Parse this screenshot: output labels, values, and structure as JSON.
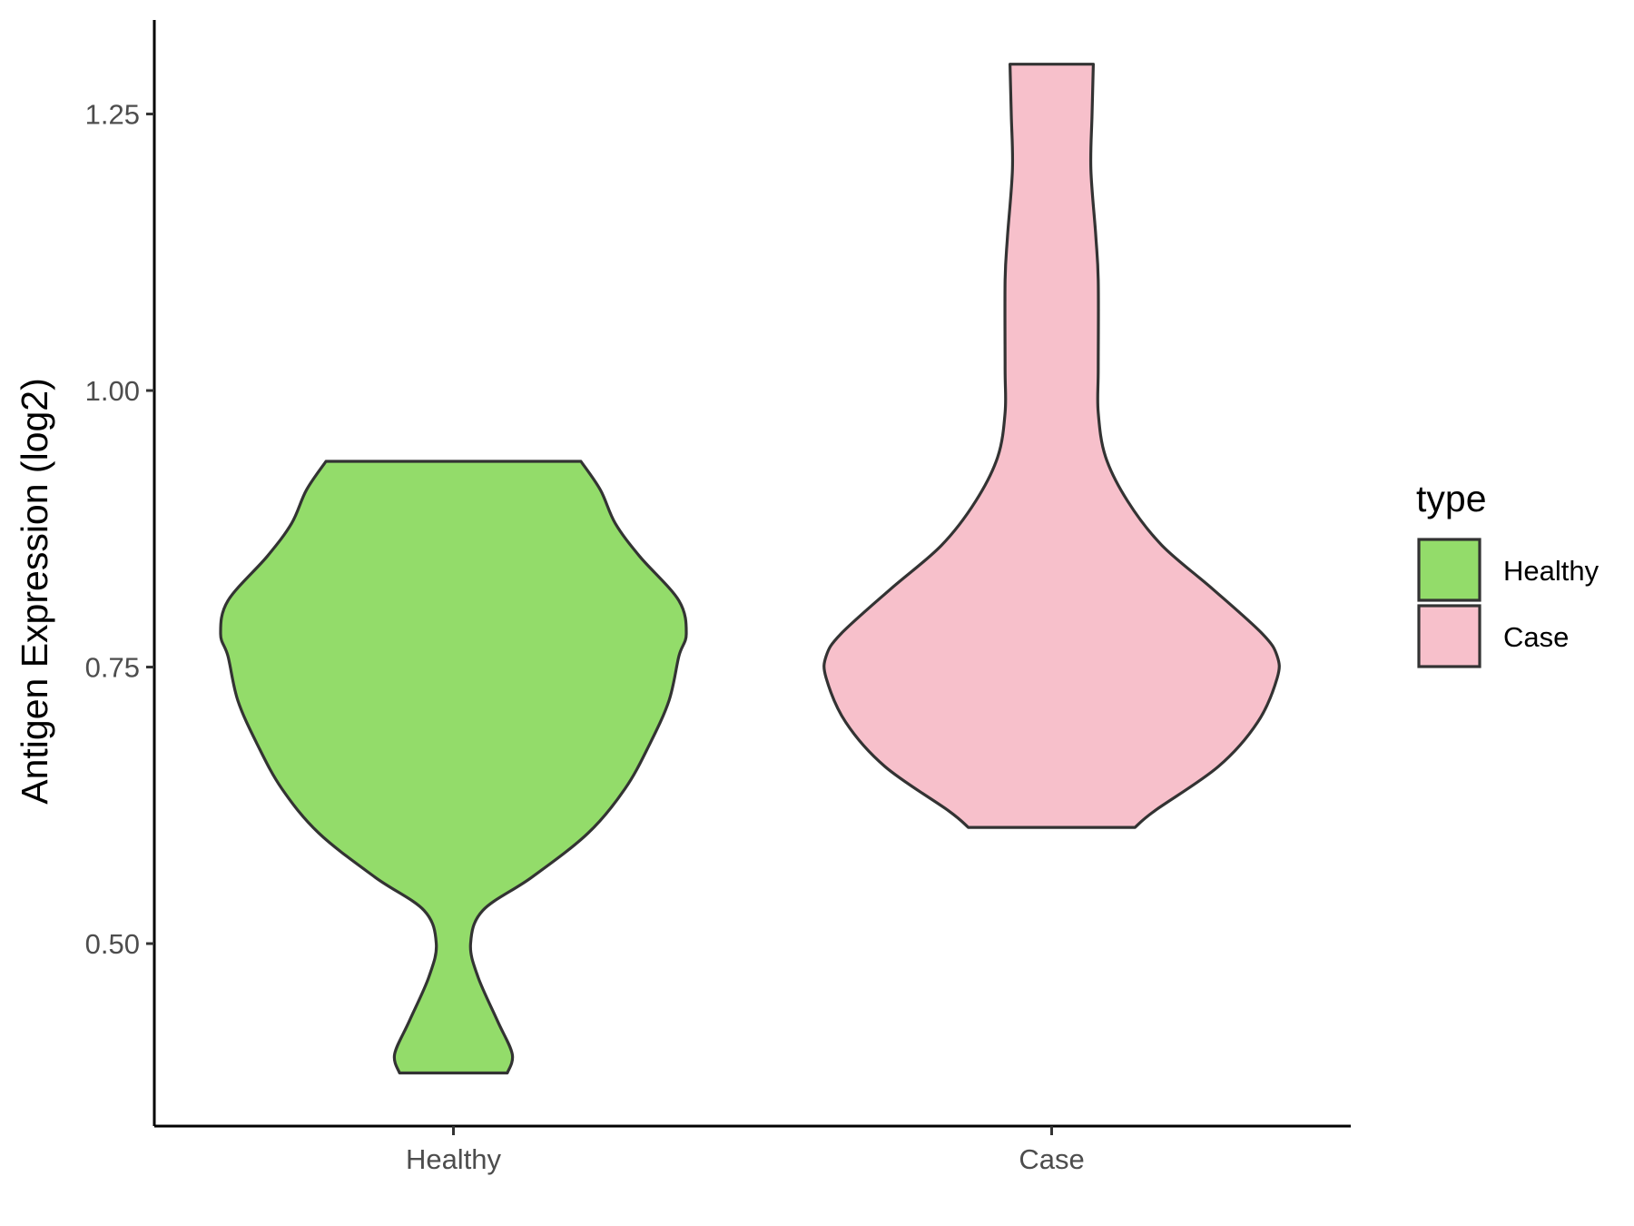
{
  "chart_data": {
    "type": "violin",
    "title": "",
    "xlabel": "",
    "ylabel": "Antigen Expression (log2)",
    "ylim": [
      0.335,
      1.335
    ],
    "yticks": [
      "0.50",
      "0.75",
      "1.00",
      "1.25"
    ],
    "ytick_values": [
      0.5,
      0.75,
      1.0,
      1.25
    ],
    "categories": [
      "Healthy",
      "Case"
    ],
    "grid": false,
    "legend": {
      "title": "type",
      "position": "right",
      "entries": [
        "Healthy",
        "Case"
      ]
    },
    "series": [
      {
        "name": "Healthy",
        "color": "#93DC6A",
        "min": 0.383,
        "max": 0.936,
        "density_profile": [
          [
            0.383,
            0.22
          ],
          [
            0.4,
            0.24
          ],
          [
            0.43,
            0.18
          ],
          [
            0.47,
            0.1
          ],
          [
            0.5,
            0.07
          ],
          [
            0.53,
            0.12
          ],
          [
            0.56,
            0.32
          ],
          [
            0.6,
            0.55
          ],
          [
            0.64,
            0.7
          ],
          [
            0.68,
            0.8
          ],
          [
            0.72,
            0.88
          ],
          [
            0.76,
            0.92
          ],
          [
            0.78,
            0.95
          ],
          [
            0.81,
            0.92
          ],
          [
            0.85,
            0.76
          ],
          [
            0.88,
            0.66
          ],
          [
            0.91,
            0.6
          ],
          [
            0.936,
            0.52
          ]
        ]
      },
      {
        "name": "Case",
        "color": "#F7C0CB",
        "min": 0.605,
        "max": 1.295,
        "density_profile": [
          [
            0.605,
            0.34
          ],
          [
            0.62,
            0.42
          ],
          [
            0.66,
            0.68
          ],
          [
            0.7,
            0.84
          ],
          [
            0.74,
            0.92
          ],
          [
            0.76,
            0.92
          ],
          [
            0.78,
            0.86
          ],
          [
            0.82,
            0.66
          ],
          [
            0.86,
            0.45
          ],
          [
            0.9,
            0.31
          ],
          [
            0.94,
            0.22
          ],
          [
            0.98,
            0.19
          ],
          [
            1.02,
            0.19
          ],
          [
            1.1,
            0.19
          ],
          [
            1.14,
            0.18
          ],
          [
            1.2,
            0.16
          ],
          [
            1.25,
            0.165
          ],
          [
            1.295,
            0.17
          ]
        ]
      }
    ]
  }
}
